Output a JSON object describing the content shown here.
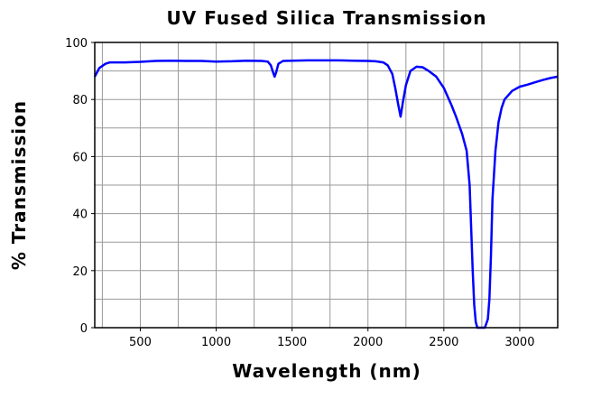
{
  "chart_data": {
    "type": "line",
    "title": "UV Fused Silica Transmission",
    "xlabel": "Wavelength (nm)",
    "ylabel": "% Transmission",
    "xlim": [
      200,
      3250
    ],
    "ylim": [
      0,
      100
    ],
    "x_ticks": [
      500,
      1000,
      1500,
      2000,
      2500,
      3000
    ],
    "y_ticks": [
      0,
      20,
      40,
      60,
      80,
      100
    ],
    "grid": true,
    "line_color": "#0000ff",
    "series": [
      {
        "x": [
          200,
          230,
          270,
          300,
          400,
          500,
          600,
          700,
          800,
          900,
          1000,
          1100,
          1200,
          1300,
          1340,
          1360,
          1375,
          1385,
          1395,
          1410,
          1440,
          1500,
          1600,
          1700,
          1800,
          1900,
          2000,
          2050,
          2100,
          2130,
          2160,
          2180,
          2200,
          2215,
          2230,
          2250,
          2280,
          2320,
          2360,
          2400,
          2450,
          2500,
          2550,
          2580,
          2620,
          2650,
          2670,
          2680,
          2690,
          2700,
          2710,
          2720,
          2730,
          2750,
          2770,
          2790,
          2800,
          2810,
          2820,
          2840,
          2860,
          2880,
          2900,
          2950,
          3000,
          3050,
          3100,
          3150,
          3200,
          3250
        ],
        "y": [
          88,
          91,
          92.5,
          93,
          93,
          93.2,
          93.5,
          93.6,
          93.5,
          93.5,
          93.3,
          93.4,
          93.6,
          93.5,
          93.3,
          92,
          89.5,
          88,
          89.5,
          92.5,
          93.5,
          93.6,
          93.7,
          93.7,
          93.7,
          93.6,
          93.5,
          93.4,
          93,
          92,
          89,
          84,
          78,
          74,
          79,
          85,
          90,
          91.5,
          91.3,
          90,
          88,
          84,
          78,
          74,
          68,
          62,
          50,
          35,
          20,
          8,
          2,
          0,
          0,
          0,
          0,
          3,
          10,
          25,
          45,
          62,
          72,
          77,
          80,
          83,
          84.5,
          85.2,
          86,
          86.8,
          87.5,
          88
        ]
      }
    ]
  }
}
